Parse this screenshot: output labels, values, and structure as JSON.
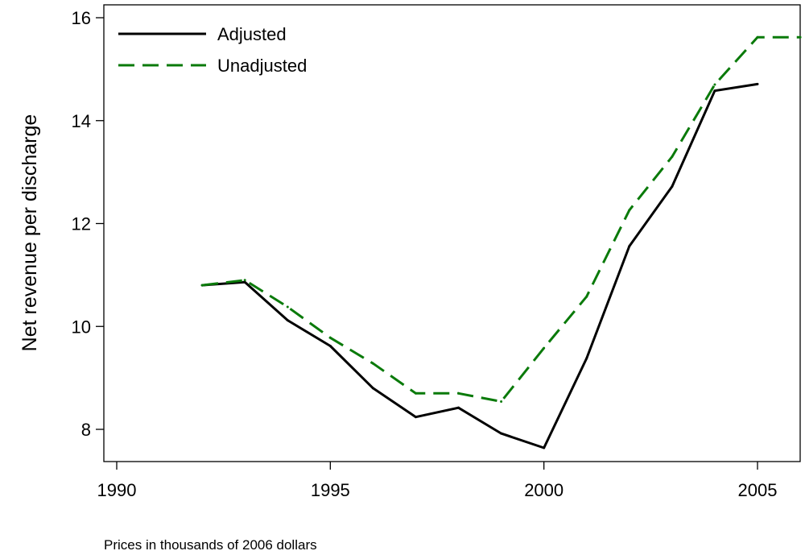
{
  "chart_data": {
    "type": "line",
    "title": "",
    "xlabel": "",
    "ylabel": "Net revenue per discharge",
    "note": "Prices in thousands of 2006 dollars",
    "xlim": [
      1990,
      2006
    ],
    "ylim": [
      7.4,
      16.3
    ],
    "xticks": [
      1990,
      1995,
      2000,
      2005
    ],
    "yticks": [
      8,
      10,
      12,
      14,
      16
    ],
    "grid": false,
    "legend_position": "top-left",
    "series": [
      {
        "name": "Adjusted",
        "color": "#000000",
        "dash": "solid",
        "x": [
          1992,
          1993,
          1994,
          1995,
          1996,
          1997,
          1998,
          1999,
          2000,
          2001,
          2002,
          2003,
          2004,
          2005
        ],
        "values": [
          10.8,
          10.86,
          10.12,
          9.62,
          8.8,
          8.24,
          8.42,
          7.92,
          7.64,
          9.38,
          11.56,
          12.72,
          14.58,
          14.71
        ]
      },
      {
        "name": "Unadjusted",
        "color": "#0a7a0a",
        "dash": "dashed",
        "x": [
          1992,
          1993,
          1994,
          1995,
          1996,
          1997,
          1998,
          1999,
          2000,
          2001,
          2002,
          2003,
          2004,
          2005,
          2006
        ],
        "values": [
          10.8,
          10.9,
          10.38,
          9.78,
          9.28,
          8.7,
          8.7,
          8.54,
          9.58,
          10.58,
          12.26,
          13.3,
          14.7,
          15.62,
          15.62
        ]
      }
    ]
  }
}
